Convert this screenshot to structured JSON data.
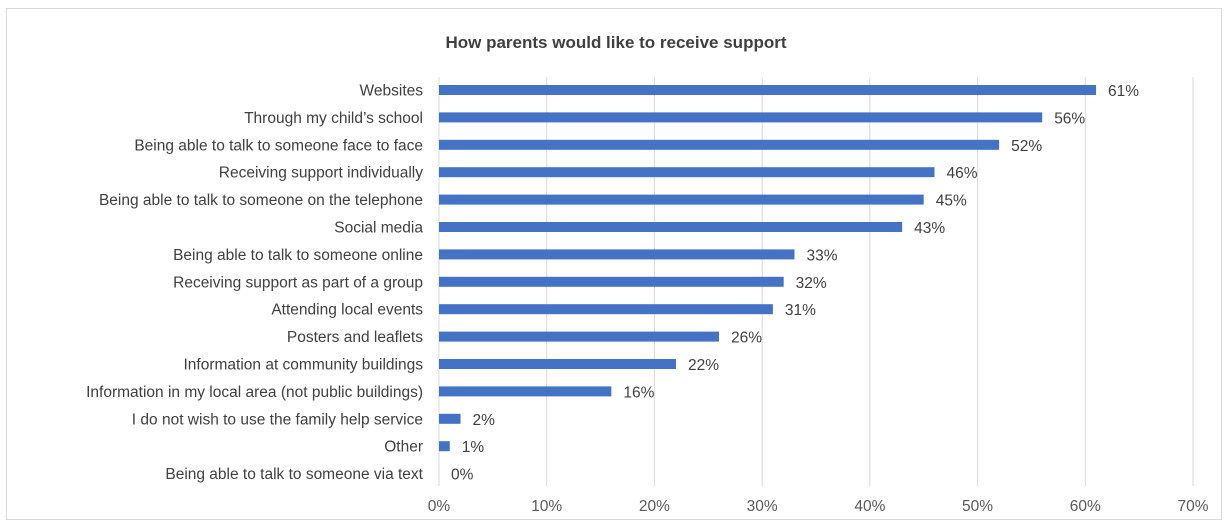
{
  "chart_data": {
    "type": "bar",
    "orientation": "horizontal",
    "title": "How parents would like to receive support",
    "xlabel": "",
    "ylabel": "",
    "xlim": [
      0,
      70
    ],
    "x_ticks": [
      "0%",
      "10%",
      "20%",
      "30%",
      "40%",
      "50%",
      "60%",
      "70%"
    ],
    "grid": true,
    "categories": [
      "Websites",
      "Through my child’s school",
      "Being able to talk to someone face to face",
      "Receiving support individually",
      "Being able to talk to someone on the telephone",
      "Social media",
      "Being able to talk to someone online",
      "Receiving support as part of a group",
      "Attending local events",
      "Posters and leaflets",
      "Information at community buildings",
      "Information in my local area (not public buildings)",
      "I do not wish to use the family help service",
      "Other",
      "Being able to talk to someone via text"
    ],
    "values": [
      61,
      56,
      52,
      46,
      45,
      43,
      33,
      32,
      31,
      26,
      22,
      16,
      2,
      1,
      0
    ],
    "value_labels": [
      "61%",
      "56%",
      "52%",
      "46%",
      "45%",
      "43%",
      "33%",
      "32%",
      "31%",
      "26%",
      "22%",
      "16%",
      "2%",
      "1%",
      "0%"
    ],
    "bar_color": "#4472c4",
    "grid_color": "#d9d9d9"
  }
}
